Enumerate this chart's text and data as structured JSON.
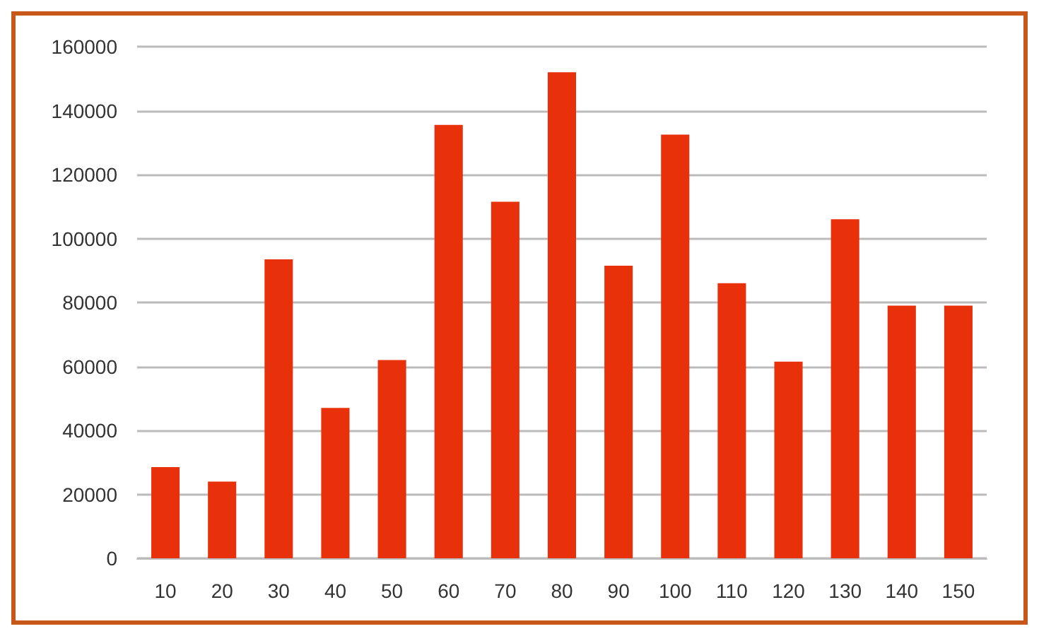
{
  "chart_data": {
    "type": "bar",
    "categories": [
      "10",
      "20",
      "30",
      "40",
      "50",
      "60",
      "70",
      "80",
      "90",
      "100",
      "110",
      "120",
      "130",
      "140",
      "150"
    ],
    "values": [
      28500,
      24000,
      93500,
      47000,
      62000,
      135500,
      111500,
      152000,
      91500,
      132500,
      86000,
      61500,
      106000,
      79000,
      79000
    ],
    "color": "#e8300a",
    "ylim": [
      0,
      160000
    ],
    "yticks": [
      0,
      20000,
      40000,
      60000,
      80000,
      100000,
      120000,
      140000,
      160000
    ],
    "grid": "y"
  }
}
